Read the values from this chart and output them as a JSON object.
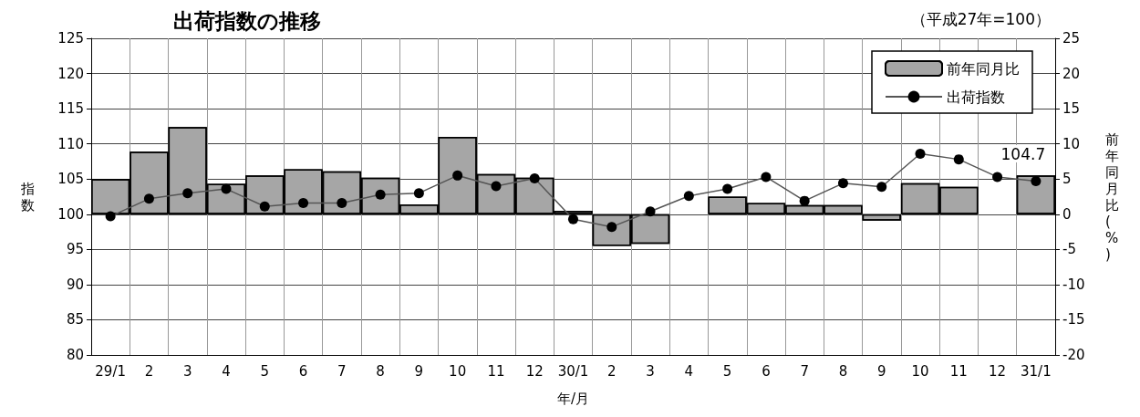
{
  "chart_data": {
    "type": "bar",
    "title": "出荷指数の推移",
    "annotations": [
      "（平成27年=100）"
    ],
    "xlabel": "年/月",
    "ylabel": "指数",
    "y2label": "前年同月比(%)",
    "categories": [
      "29/1",
      "2",
      "3",
      "4",
      "5",
      "6",
      "7",
      "8",
      "9",
      "10",
      "11",
      "12",
      "30/1",
      "2",
      "3",
      "4",
      "5",
      "6",
      "7",
      "8",
      "9",
      "10",
      "11",
      "12",
      "31/1"
    ],
    "series": [
      {
        "name": "前年同月比",
        "axis": "y2",
        "color": "#a6a6a6",
        "values": [
          5.0,
          8.9,
          12.4,
          4.3,
          5.5,
          6.4,
          6.1,
          5.2,
          1.4,
          11.0,
          5.7,
          5.2,
          0.5,
          -4.5,
          -4.2,
          0,
          2.5,
          1.6,
          1.3,
          1.3,
          -0.9,
          4.4,
          3.9,
          0,
          5.5
        ]
      },
      {
        "name": "出荷指数",
        "type": "line",
        "axis": "y",
        "color": "#000000",
        "marker": "circle",
        "values": [
          99.7,
          102.2,
          103.0,
          103.6,
          101.1,
          101.6,
          101.6,
          102.8,
          103.0,
          105.5,
          104.0,
          105.1,
          99.3,
          98.2,
          100.4,
          102.6,
          103.6,
          105.3,
          101.9,
          104.4,
          103.9,
          108.6,
          107.8,
          105.3,
          104.7
        ],
        "value_labels": [
          null,
          null,
          null,
          null,
          null,
          null,
          null,
          null,
          null,
          null,
          null,
          null,
          null,
          null,
          null,
          null,
          null,
          null,
          null,
          null,
          null,
          null,
          null,
          null,
          "104.7"
        ]
      }
    ],
    "ylim": [
      80,
      125
    ],
    "yticks": [
      80,
      85,
      90,
      95,
      100,
      105,
      110,
      115,
      120,
      125
    ],
    "y2lim": [
      -20,
      25
    ],
    "y2ticks": [
      -20,
      -15,
      -10,
      -5,
      0,
      5,
      10,
      15,
      20,
      25
    ],
    "grid": true,
    "legend": "top right"
  }
}
